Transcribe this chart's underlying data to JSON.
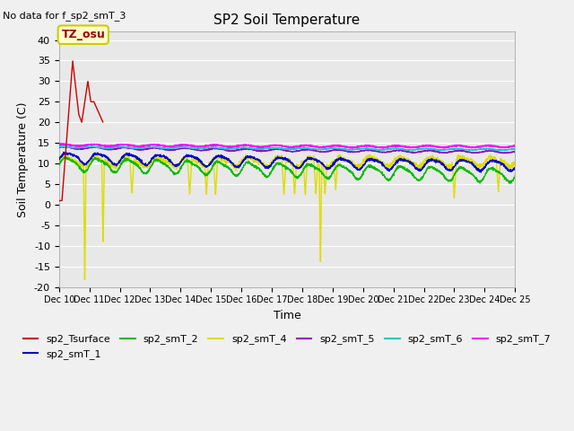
{
  "title": "SP2 Soil Temperature",
  "subtitle": "No data for f_sp2_smT_3",
  "xlabel": "Time",
  "ylabel": "Soil Temperature (C)",
  "annotation": "TZ_osu",
  "ylim": [
    -20,
    42
  ],
  "yticks": [
    -20,
    -15,
    -10,
    -5,
    0,
    5,
    10,
    15,
    20,
    25,
    30,
    35,
    40
  ],
  "xtick_labels": [
    "Dec 10",
    "Dec 11",
    "Dec 12",
    "Dec 13",
    "Dec 14",
    "Dec 15",
    "Dec 16",
    "Dec 17",
    "Dec 18",
    "Dec 19",
    "Dec 20",
    "Dec 21",
    "Dec 22",
    "Dec 23",
    "Dec 24",
    "Dec 25"
  ],
  "series_colors": {
    "sp2_Tsurface": "#cc0000",
    "sp2_smT_1": "#0000cc",
    "sp2_smT_2": "#00bb00",
    "sp2_smT_4": "#dddd00",
    "sp2_smT_5": "#9900bb",
    "sp2_smT_6": "#00cccc",
    "sp2_smT_7": "#ff00ff"
  },
  "bg_color": "#e8e8e8",
  "fig_color": "#f0f0f0",
  "grid_color": "#ffffff",
  "annotation_text_color": "#990000",
  "annotation_bg": "#ffffcc",
  "annotation_edge": "#cccc00"
}
